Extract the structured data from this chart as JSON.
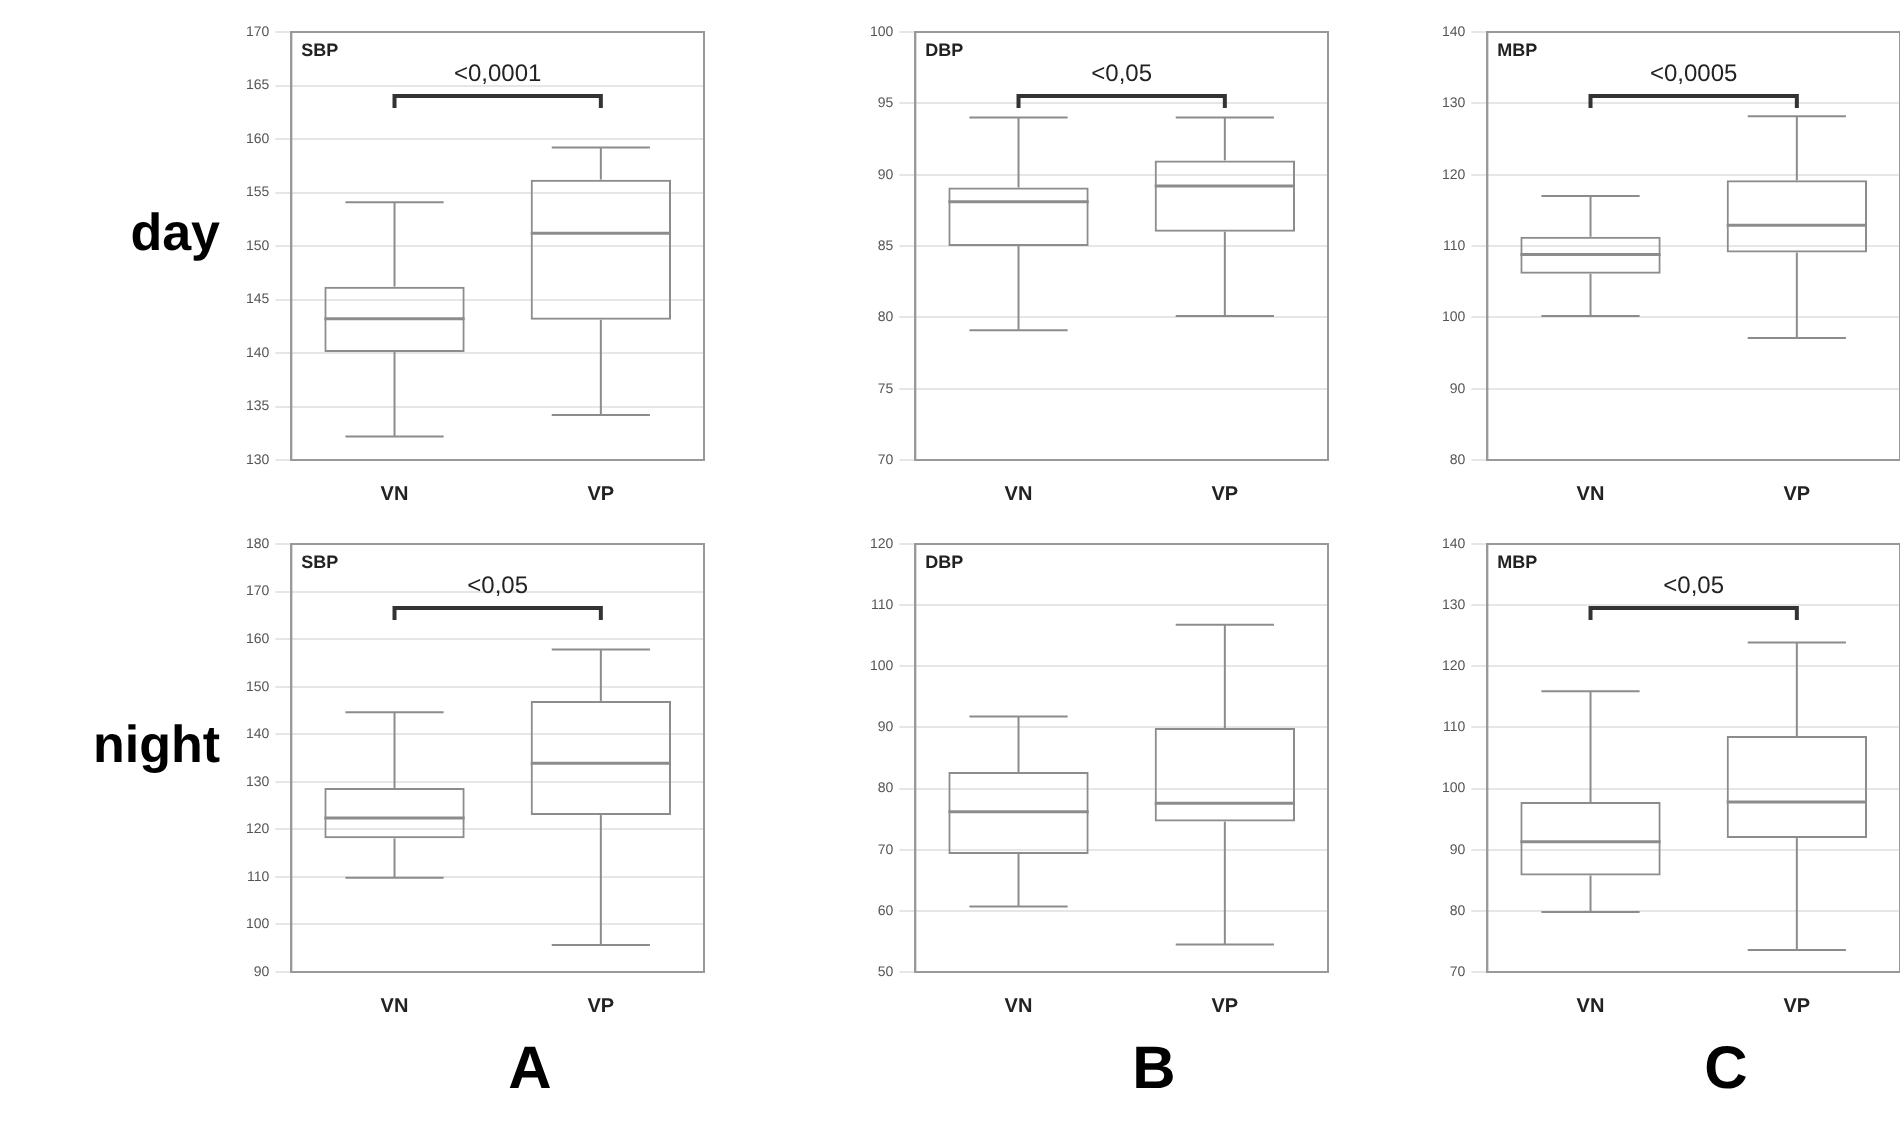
{
  "chart_data": [
    {
      "type": "box",
      "title": "SBP",
      "ylabel": "day",
      "categories": [
        "VN",
        "VP"
      ],
      "color": "#8c8c8c",
      "grid": "y",
      "ylim": [
        130,
        170
      ],
      "yticks": [
        130,
        135,
        140,
        145,
        150,
        155,
        160,
        165,
        170
      ],
      "annotations": [
        "<0,0001"
      ],
      "boxes": [
        {
          "low": 132.2,
          "q1": 140.1,
          "median": 143.2,
          "q3": 146.2,
          "high": 154.1
        },
        {
          "low": 134.2,
          "q1": 143.1,
          "median": 151.2,
          "q3": 156.2,
          "high": 159.2
        }
      ]
    },
    {
      "type": "box",
      "title": "DBP",
      "categories": [
        "VN",
        "VP"
      ],
      "color": "#8c8c8c",
      "grid": "y",
      "ylim": [
        70,
        100
      ],
      "yticks": [
        70,
        75,
        80,
        85,
        90,
        95,
        100
      ],
      "annotations": [
        "<0,05"
      ],
      "boxes": [
        {
          "low": 79.1,
          "q1": 85.0,
          "median": 88.1,
          "q3": 89.1,
          "high": 94.0
        },
        {
          "low": 80.1,
          "q1": 86.0,
          "median": 89.2,
          "q3": 91.0,
          "high": 94.0
        }
      ]
    },
    {
      "type": "box",
      "title": "MBP",
      "categories": [
        "VN",
        "VP"
      ],
      "color": "#8c8c8c",
      "grid": "y",
      "ylim": [
        80,
        140
      ],
      "yticks": [
        80,
        90,
        100,
        110,
        120,
        130,
        140
      ],
      "annotations": [
        "<0,0005"
      ],
      "boxes": [
        {
          "low": 100.2,
          "q1": 106.1,
          "median": 108.8,
          "q3": 111.3,
          "high": 117.0
        },
        {
          "low": 97.1,
          "q1": 109.1,
          "median": 112.9,
          "q3": 119.2,
          "high": 128.2
        }
      ]
    },
    {
      "type": "box",
      "title": "SBP",
      "ylabel": "night",
      "xlabel": "A",
      "categories": [
        "VN",
        "VP"
      ],
      "color": "#8c8c8c",
      "grid": "y",
      "ylim": [
        90,
        180
      ],
      "yticks": [
        90,
        100,
        110,
        120,
        130,
        140,
        150,
        160,
        170,
        180
      ],
      "annotations": [
        "<0,05"
      ],
      "boxes": [
        {
          "low": 109.8,
          "q1": 118.1,
          "median": 122.4,
          "q3": 128.7,
          "high": 144.6
        },
        {
          "low": 95.7,
          "q1": 123.0,
          "median": 133.9,
          "q3": 147.0,
          "high": 157.8
        }
      ]
    },
    {
      "type": "box",
      "title": "DBP",
      "xlabel": "B",
      "categories": [
        "VN",
        "VP"
      ],
      "color": "#8c8c8c",
      "grid": "y",
      "ylim": [
        50,
        120
      ],
      "yticks": [
        50,
        60,
        70,
        80,
        90,
        100,
        110,
        120
      ],
      "boxes": [
        {
          "low": 60.7,
          "q1": 69.3,
          "median": 76.2,
          "q3": 82.7,
          "high": 91.8
        },
        {
          "low": 54.5,
          "q1": 74.6,
          "median": 77.6,
          "q3": 89.9,
          "high": 106.8
        }
      ]
    },
    {
      "type": "box",
      "title": "MBP",
      "xlabel": "C",
      "categories": [
        "VN",
        "VP"
      ],
      "color": "#8c8c8c",
      "grid": "y",
      "ylim": [
        70,
        140
      ],
      "yticks": [
        70,
        80,
        90,
        100,
        110,
        120,
        130,
        140
      ],
      "annotations": [
        "<0,05"
      ],
      "boxes": [
        {
          "low": 79.8,
          "q1": 85.8,
          "median": 91.3,
          "q3": 97.8,
          "high": 115.9
        },
        {
          "low": 73.6,
          "q1": 91.9,
          "median": 97.8,
          "q3": 108.6,
          "high": 123.9
        }
      ]
    }
  ]
}
